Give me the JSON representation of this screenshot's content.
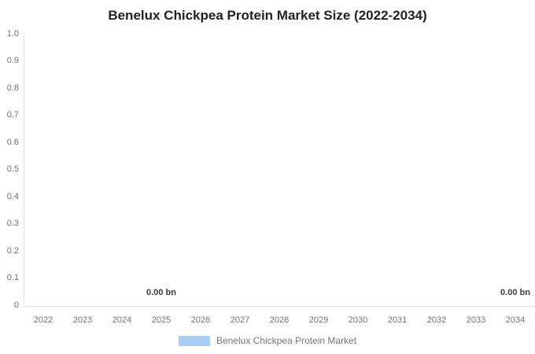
{
  "chart_data": {
    "type": "bar",
    "title": "Benelux Chickpea Protein Market Size (2022-2034)",
    "categories": [
      "2022",
      "2023",
      "2024",
      "2025",
      "2026",
      "2027",
      "2028",
      "2029",
      "2030",
      "2031",
      "2032",
      "2033",
      "2034"
    ],
    "series": [
      {
        "name": "Benelux Chickpea Protein Market",
        "values": [
          0,
          0,
          0,
          0,
          0,
          0,
          0,
          0,
          0,
          0,
          0,
          0,
          0
        ],
        "color": "#a9ccf4"
      }
    ],
    "unit": "bn",
    "ylim": [
      0,
      1
    ],
    "yticks": [
      "0",
      "0.1",
      "0.2",
      "0.3",
      "0.4",
      "0.5",
      "0.6",
      "0.7",
      "0.8",
      "0.9",
      "1.0"
    ],
    "grid": false,
    "data_labels": [
      {
        "category": "2025",
        "text": "0.00 bn"
      },
      {
        "category": "2034",
        "text": "0.00 bn"
      }
    ],
    "legend": {
      "position": "bottom",
      "items": [
        {
          "label": "Benelux Chickpea Protein Market",
          "color": "#a9ccf4"
        }
      ]
    }
  }
}
